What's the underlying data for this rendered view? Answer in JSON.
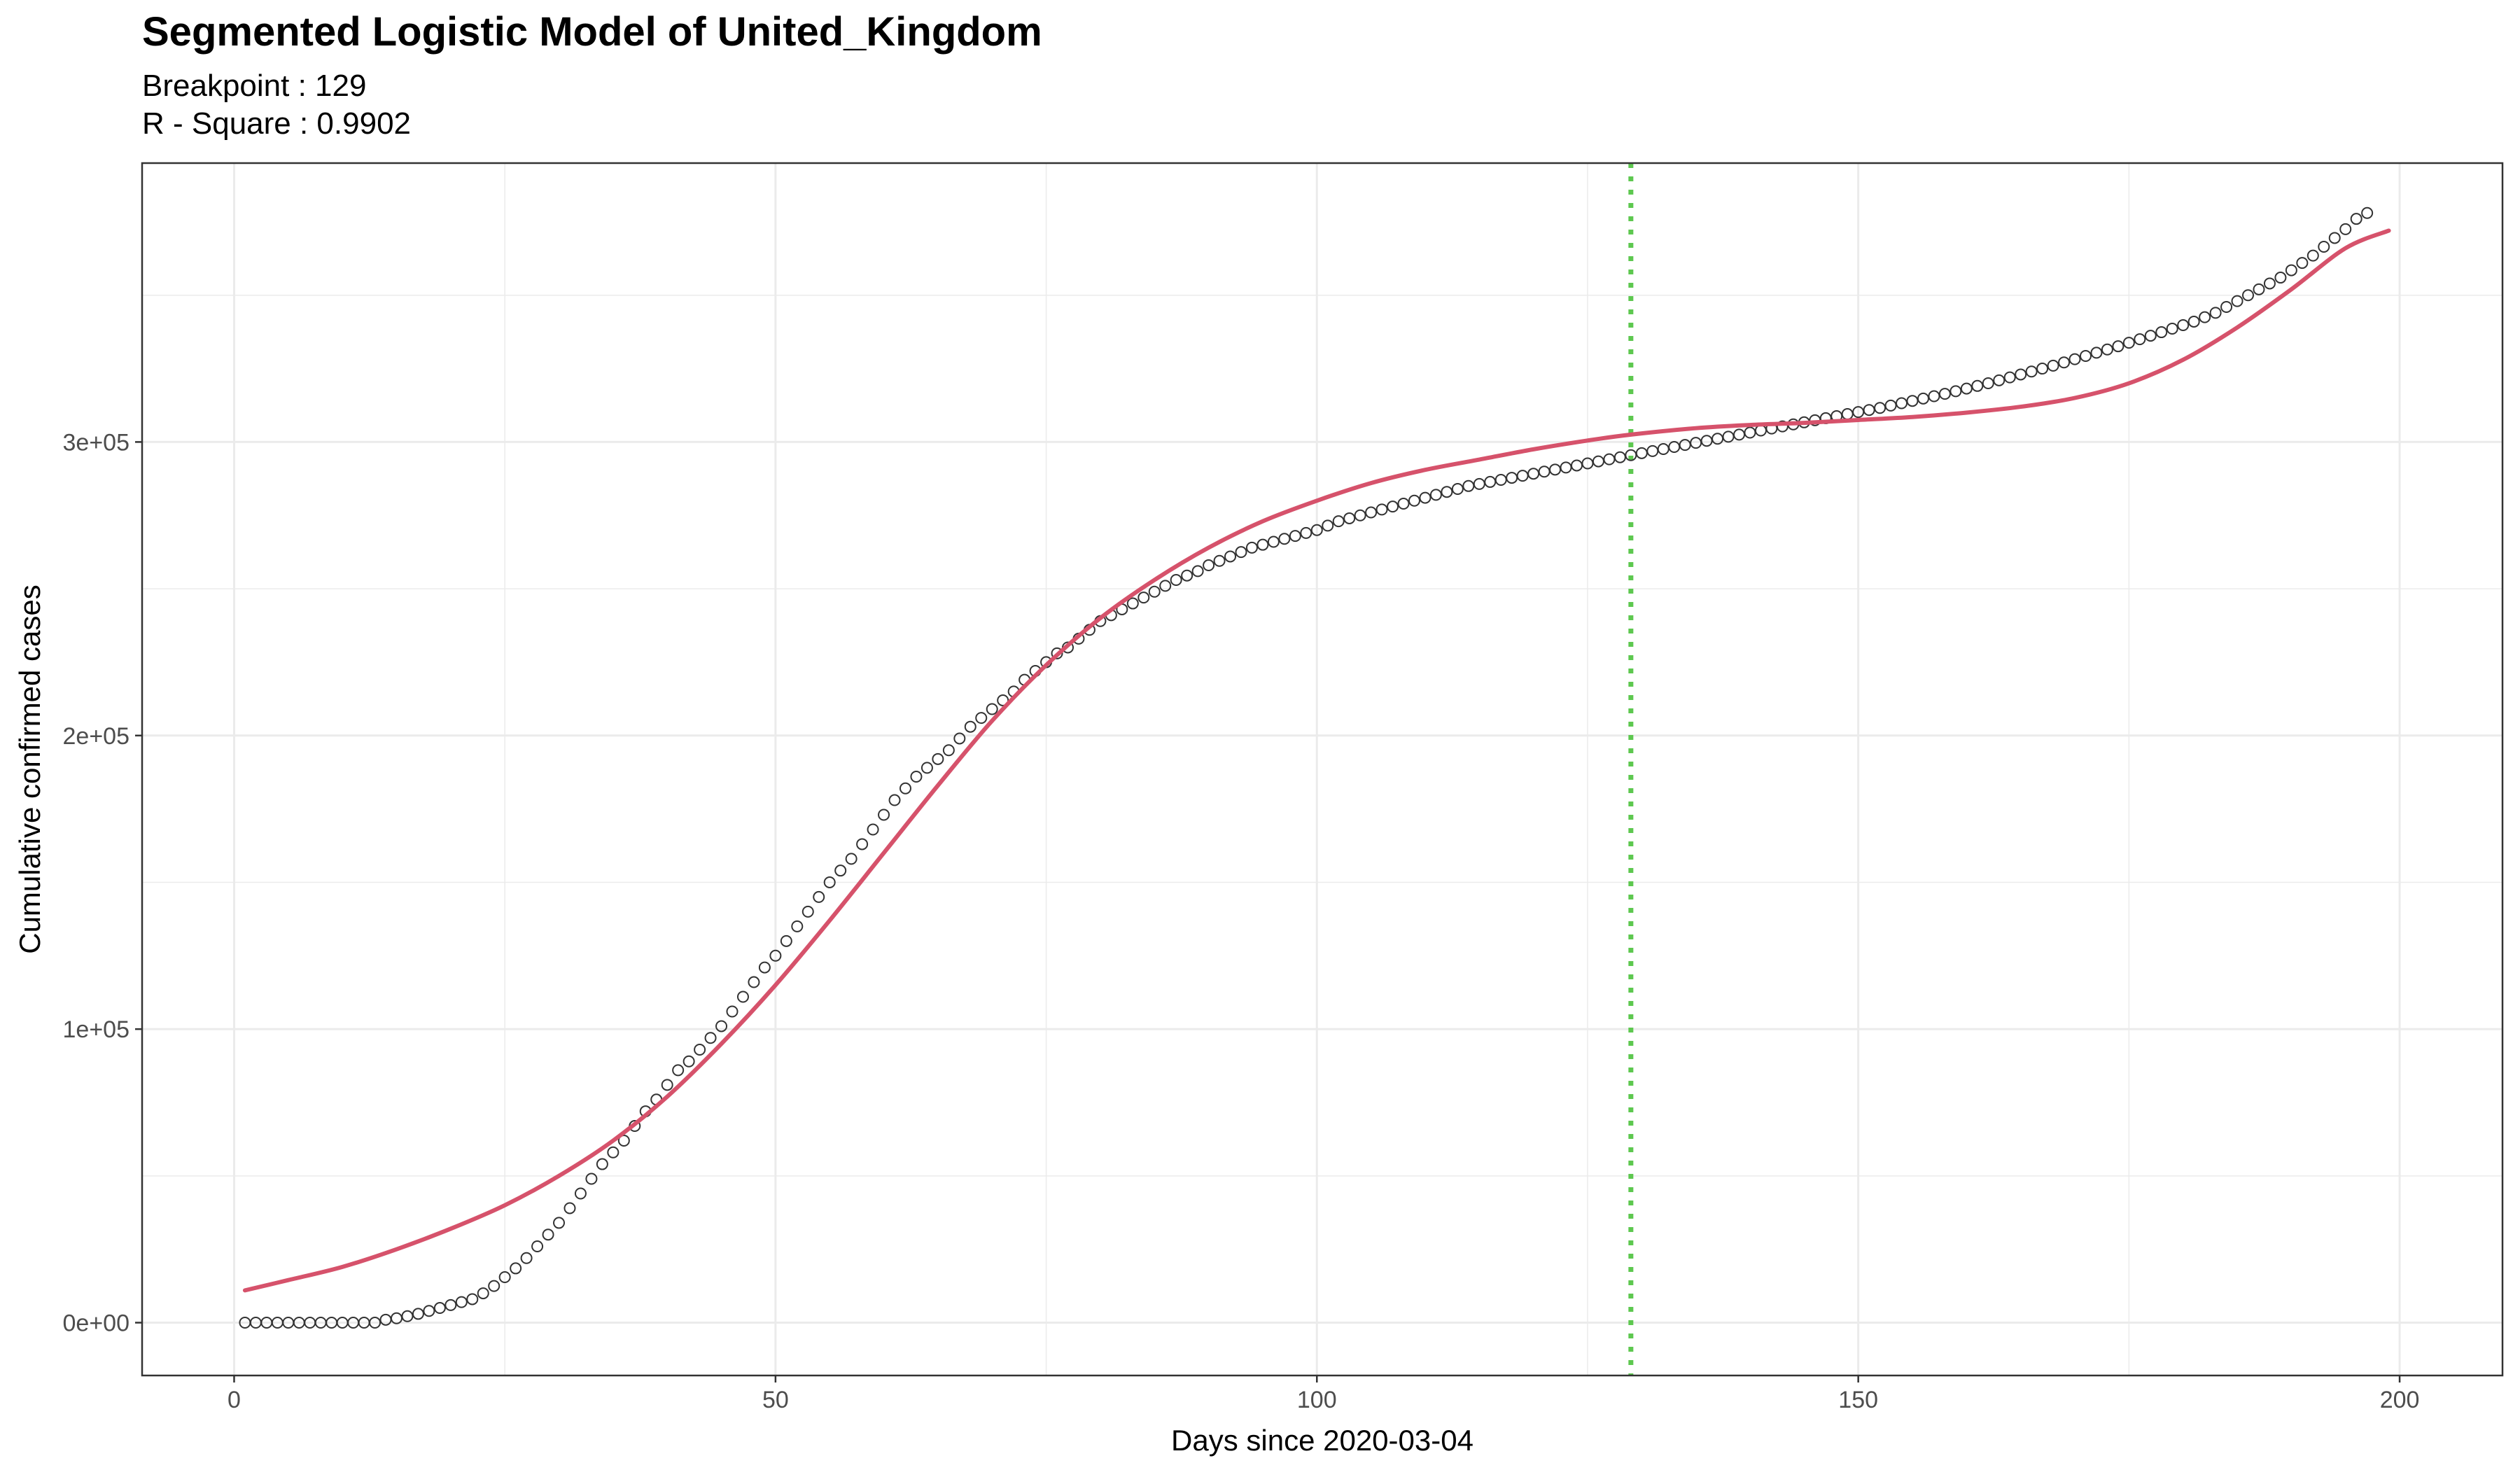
{
  "chart_data": {
    "type": "scatter",
    "title": "Segmented Logistic Model of United_Kingdom",
    "subtitle_lines": [
      "Breakpoint : 129",
      "R - Square : 0.9902"
    ],
    "xlabel": "Days since 2020-03-04",
    "ylabel": "Cumulative confirmed cases",
    "xlim": [
      -8.5,
      209.5
    ],
    "ylim": [
      -18000,
      395000
    ],
    "x_ticks": [
      0,
      50,
      100,
      150,
      200
    ],
    "x_tick_labels": [
      "0",
      "50",
      "100",
      "150",
      "200"
    ],
    "y_ticks": [
      0,
      100000,
      200000,
      300000
    ],
    "y_tick_labels": [
      "0e+00",
      "1e+05",
      "2e+05",
      "3e+05"
    ],
    "grid": true,
    "breakpoint": 129,
    "observed": {
      "x_start": 1,
      "step": 1,
      "values": [
        0,
        0,
        0,
        0,
        0,
        0,
        0,
        0,
        0,
        0,
        0,
        0,
        0,
        1000,
        1500,
        2200,
        3000,
        4000,
        5000,
        6000,
        7000,
        8000,
        10000,
        12500,
        15500,
        18500,
        22000,
        26000,
        30000,
        34000,
        39000,
        44000,
        49000,
        54000,
        58000,
        62000,
        67000,
        72000,
        76000,
        81000,
        86000,
        89000,
        93000,
        97000,
        101000,
        106000,
        111000,
        116000,
        121000,
        125000,
        130000,
        135000,
        140000,
        145000,
        150000,
        154000,
        158000,
        163000,
        168000,
        173000,
        178000,
        182000,
        186000,
        189000,
        192000,
        195000,
        199000,
        203000,
        206000,
        209000,
        212000,
        215000,
        219000,
        222000,
        225000,
        228000,
        230000,
        233000,
        236000,
        239000,
        241000,
        243000,
        245000,
        247000,
        249000,
        251000,
        253000,
        254500,
        256000,
        258000,
        259500,
        261000,
        262500,
        264000,
        265000,
        266000,
        267000,
        268000,
        269000,
        270000,
        271500,
        273000,
        274000,
        275000,
        276000,
        277000,
        278000,
        279000,
        280000,
        281000,
        282000,
        283000,
        284000,
        285000,
        285700,
        286400,
        287100,
        287800,
        288500,
        289200,
        289900,
        290600,
        291300,
        292000,
        292700,
        293400,
        294100,
        294800,
        295500,
        296200,
        296900,
        297600,
        298300,
        299000,
        299700,
        300400,
        301100,
        301800,
        302500,
        303200,
        303900,
        304600,
        305300,
        306000,
        306700,
        307400,
        308100,
        308800,
        309500,
        310200,
        310900,
        311600,
        312400,
        313200,
        314000,
        314800,
        315600,
        316400,
        317300,
        318200,
        319100,
        320000,
        321000,
        322000,
        323000,
        324000,
        325000,
        326000,
        327100,
        328200,
        329300,
        330400,
        331500,
        332600,
        333800,
        335000,
        336200,
        337400,
        338600,
        339800,
        341000,
        342500,
        344000,
        346000,
        348000,
        350000,
        352000,
        354000,
        356000,
        358500,
        361000,
        363500,
        366500,
        369500,
        372500,
        376000,
        378000
      ]
    },
    "fitted": {
      "x": [
        1,
        5,
        10,
        15,
        20,
        25,
        30,
        35,
        40,
        45,
        50,
        55,
        60,
        65,
        70,
        75,
        80,
        85,
        90,
        95,
        100,
        105,
        110,
        115,
        120,
        125,
        129,
        135,
        140,
        145,
        150,
        155,
        160,
        165,
        170,
        175,
        180,
        185,
        190,
        195,
        199
      ],
      "values": [
        11000,
        14500,
        19000,
        25000,
        32000,
        40000,
        50000,
        62000,
        77000,
        95000,
        115000,
        137000,
        160000,
        183000,
        205000,
        224000,
        240000,
        253000,
        264000,
        273000,
        280000,
        286000,
        290500,
        294000,
        297500,
        300500,
        302500,
        304700,
        305800,
        306500,
        307500,
        308500,
        310000,
        312000,
        315000,
        320000,
        328000,
        339000,
        352000,
        366000,
        372000
      ]
    },
    "colors": {
      "observed_stroke": "#333333",
      "fitted_line": "#D6526B",
      "breakpoint_line": "#5DC84F",
      "grid": "#EBEBEB",
      "panel_border": "#333333"
    }
  }
}
